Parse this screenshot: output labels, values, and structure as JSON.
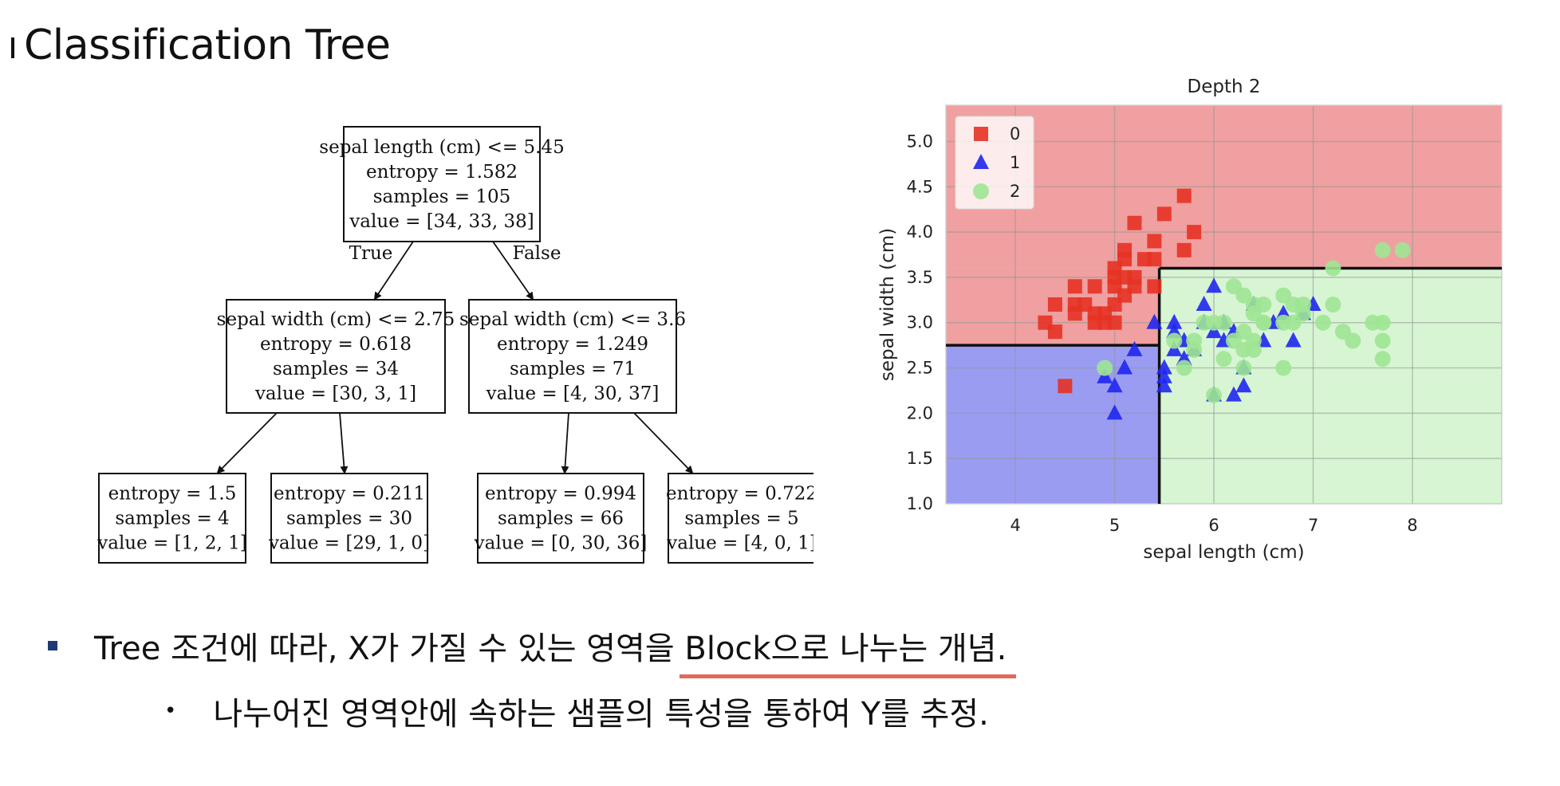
{
  "slide": {
    "title": "Classification Tree",
    "bullet1": {
      "before": "Tree 조건에 따라, X가 가질 수 있는 영역을 ",
      "highlight": "Block으로 나누는 개념."
    },
    "bullet2": "나누어진 영역안에 속하는 샘플의 특성을 통하여 Y를 추정."
  },
  "tree": {
    "nodes": [
      {
        "id": "root",
        "lines": [
          "sepal length (cm) <= 5.45",
          "entropy = 1.582",
          "samples = 105",
          "value = [34, 33, 38]"
        ]
      },
      {
        "id": "left",
        "lines": [
          "sepal width (cm) <= 2.75",
          "entropy = 0.618",
          "samples = 34",
          "value = [30, 3, 1]"
        ]
      },
      {
        "id": "right",
        "lines": [
          "sepal width (cm) <= 3.6",
          "entropy = 1.249",
          "samples = 71",
          "value = [4, 30, 37]"
        ]
      },
      {
        "id": "ll",
        "lines": [
          "entropy = 1.5",
          "samples = 4",
          "value = [1, 2, 1]"
        ]
      },
      {
        "id": "lr",
        "lines": [
          "entropy = 0.211",
          "samples = 30",
          "value = [29, 1, 0]"
        ]
      },
      {
        "id": "rl",
        "lines": [
          "entropy = 0.994",
          "samples = 66",
          "value = [0, 30, 36]"
        ]
      },
      {
        "id": "rr",
        "lines": [
          "entropy = 0.722",
          "samples = 5",
          "value = [4, 0, 1]"
        ]
      }
    ],
    "edge_labels": {
      "true": "True",
      "false": "False"
    }
  },
  "chart_data": {
    "type": "scatter",
    "title": "Depth 2",
    "xlabel": "sepal length (cm)",
    "ylabel": "sepal width (cm)",
    "xlim": [
      3.3,
      8.9
    ],
    "ylim": [
      1.0,
      5.4
    ],
    "xticks": [
      4,
      5,
      6,
      7,
      8
    ],
    "yticks": [
      1.0,
      1.5,
      2.0,
      2.5,
      3.0,
      3.5,
      4.0,
      4.5,
      5.0
    ],
    "grid": true,
    "legend_position": "top-left",
    "regions": [
      {
        "class": "0",
        "x": [
          3.3,
          8.9
        ],
        "y": [
          3.6,
          5.4
        ],
        "color": "#f0a0a0"
      },
      {
        "class": "0",
        "x": [
          3.3,
          5.45
        ],
        "y": [
          2.75,
          3.6
        ],
        "color": "#f0a0a0"
      },
      {
        "class": "1",
        "x": [
          3.3,
          5.45
        ],
        "y": [
          1.0,
          2.75
        ],
        "color": "#9a9cf2"
      },
      {
        "class": "2",
        "x": [
          5.45,
          8.9
        ],
        "y": [
          1.0,
          3.6
        ],
        "color": "#d7f5d3"
      }
    ],
    "boundaries": [
      {
        "x": [
          3.3,
          5.45
        ],
        "y": [
          2.75,
          2.75
        ]
      },
      {
        "x": [
          5.45,
          5.45
        ],
        "y": [
          1.0,
          3.6
        ]
      },
      {
        "x": [
          5.45,
          8.9
        ],
        "y": [
          3.6,
          3.6
        ]
      }
    ],
    "series": [
      {
        "name": "0",
        "marker": "square",
        "color": "#e53224",
        "points": [
          [
            4.3,
            3.0
          ],
          [
            4.4,
            2.9
          ],
          [
            4.4,
            3.2
          ],
          [
            4.5,
            2.3
          ],
          [
            4.6,
            3.1
          ],
          [
            4.6,
            3.4
          ],
          [
            4.6,
            3.2
          ],
          [
            4.7,
            3.2
          ],
          [
            4.8,
            3.0
          ],
          [
            4.8,
            3.4
          ],
          [
            4.8,
            3.1
          ],
          [
            4.9,
            3.0
          ],
          [
            4.9,
            3.1
          ],
          [
            5.0,
            3.0
          ],
          [
            5.0,
            3.2
          ],
          [
            5.0,
            3.4
          ],
          [
            5.0,
            3.6
          ],
          [
            5.0,
            3.5
          ],
          [
            5.1,
            3.5
          ],
          [
            5.1,
            3.8
          ],
          [
            5.1,
            3.3
          ],
          [
            5.1,
            3.7
          ],
          [
            5.2,
            3.4
          ],
          [
            5.2,
            4.1
          ],
          [
            5.2,
            3.5
          ],
          [
            5.3,
            3.7
          ],
          [
            5.4,
            3.9
          ],
          [
            5.4,
            3.4
          ],
          [
            5.4,
            3.7
          ],
          [
            5.5,
            4.2
          ],
          [
            5.7,
            4.4
          ],
          [
            5.7,
            3.8
          ],
          [
            5.8,
            4.0
          ]
        ]
      },
      {
        "name": "1",
        "marker": "triangle",
        "color": "#1f27f0",
        "points": [
          [
            4.9,
            2.4
          ],
          [
            5.0,
            2.0
          ],
          [
            5.0,
            2.3
          ],
          [
            5.1,
            2.5
          ],
          [
            5.2,
            2.7
          ],
          [
            5.4,
            3.0
          ],
          [
            5.5,
            2.3
          ],
          [
            5.5,
            2.4
          ],
          [
            5.5,
            2.5
          ],
          [
            5.6,
            2.9
          ],
          [
            5.6,
            3.0
          ],
          [
            5.6,
            2.7
          ],
          [
            5.7,
            2.8
          ],
          [
            5.7,
            2.6
          ],
          [
            5.8,
            2.7
          ],
          [
            5.9,
            3.0
          ],
          [
            5.9,
            3.2
          ],
          [
            6.0,
            2.2
          ],
          [
            6.0,
            2.9
          ],
          [
            6.0,
            3.4
          ],
          [
            6.1,
            2.8
          ],
          [
            6.1,
            3.0
          ],
          [
            6.2,
            2.2
          ],
          [
            6.2,
            2.9
          ],
          [
            6.3,
            2.5
          ],
          [
            6.3,
            2.3
          ],
          [
            6.4,
            3.2
          ],
          [
            6.5,
            2.8
          ],
          [
            6.6,
            3.0
          ],
          [
            6.7,
            3.1
          ],
          [
            6.8,
            2.8
          ],
          [
            6.9,
            3.1
          ],
          [
            7.0,
            3.2
          ]
        ]
      },
      {
        "name": "2",
        "marker": "circle",
        "color": "#9ee693",
        "points": [
          [
            4.9,
            2.5
          ],
          [
            5.6,
            2.8
          ],
          [
            5.7,
            2.5
          ],
          [
            5.8,
            2.7
          ],
          [
            5.8,
            2.8
          ],
          [
            5.9,
            3.0
          ],
          [
            6.0,
            3.0
          ],
          [
            6.0,
            2.2
          ],
          [
            6.1,
            3.0
          ],
          [
            6.1,
            2.6
          ],
          [
            6.2,
            2.8
          ],
          [
            6.2,
            3.4
          ],
          [
            6.3,
            3.3
          ],
          [
            6.3,
            2.7
          ],
          [
            6.3,
            2.9
          ],
          [
            6.3,
            2.5
          ],
          [
            6.4,
            2.7
          ],
          [
            6.4,
            3.1
          ],
          [
            6.4,
            3.2
          ],
          [
            6.4,
            2.8
          ],
          [
            6.5,
            3.0
          ],
          [
            6.5,
            3.2
          ],
          [
            6.5,
            3.0
          ],
          [
            6.7,
            3.3
          ],
          [
            6.7,
            3.0
          ],
          [
            6.7,
            2.5
          ],
          [
            6.8,
            3.2
          ],
          [
            6.8,
            3.0
          ],
          [
            6.9,
            3.1
          ],
          [
            6.9,
            3.2
          ],
          [
            7.1,
            3.0
          ],
          [
            7.2,
            3.6
          ],
          [
            7.2,
            3.2
          ],
          [
            7.3,
            2.9
          ],
          [
            7.4,
            2.8
          ],
          [
            7.6,
            3.0
          ],
          [
            7.7,
            3.8
          ],
          [
            7.7,
            2.6
          ],
          [
            7.7,
            2.8
          ],
          [
            7.7,
            3.0
          ],
          [
            7.9,
            3.8
          ]
        ]
      }
    ]
  }
}
